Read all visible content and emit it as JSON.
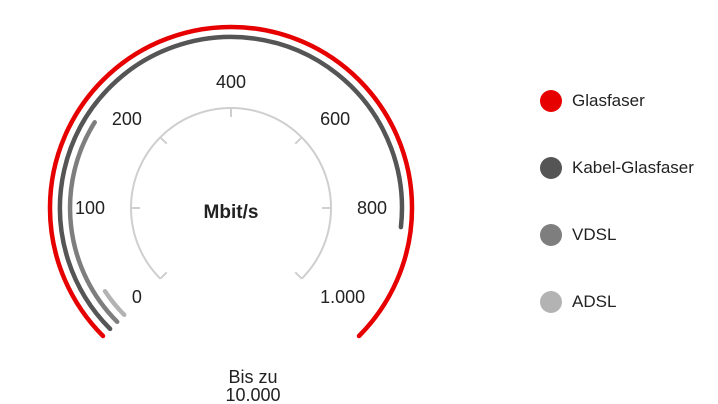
{
  "chart_data": {
    "type": "gauge",
    "unit": "Mbit/s",
    "ticks": [
      "0",
      "100",
      "200",
      "400",
      "600",
      "800",
      "1.000"
    ],
    "max_label_line1": "Bis zu",
    "max_label_line2": "10.000",
    "series": [
      {
        "name": "Glasfaser",
        "color": "#e60000",
        "max_tick": 7
      },
      {
        "name": "Kabel-Glasfaser",
        "color": "#555555",
        "max_tick": 6
      },
      {
        "name": "VDSL",
        "color": "#7e7e7e",
        "max_tick": 2
      },
      {
        "name": "ADSL",
        "color": "#b3b3b3",
        "max_tick": 0.3
      }
    ]
  },
  "legend": [
    {
      "label": "Glasfaser",
      "color": "#e60000"
    },
    {
      "label": "Kabel-Glasfaser",
      "color": "#555555"
    },
    {
      "label": "VDSL",
      "color": "#7e7e7e"
    },
    {
      "label": "ADSL",
      "color": "#b3b3b3"
    }
  ]
}
